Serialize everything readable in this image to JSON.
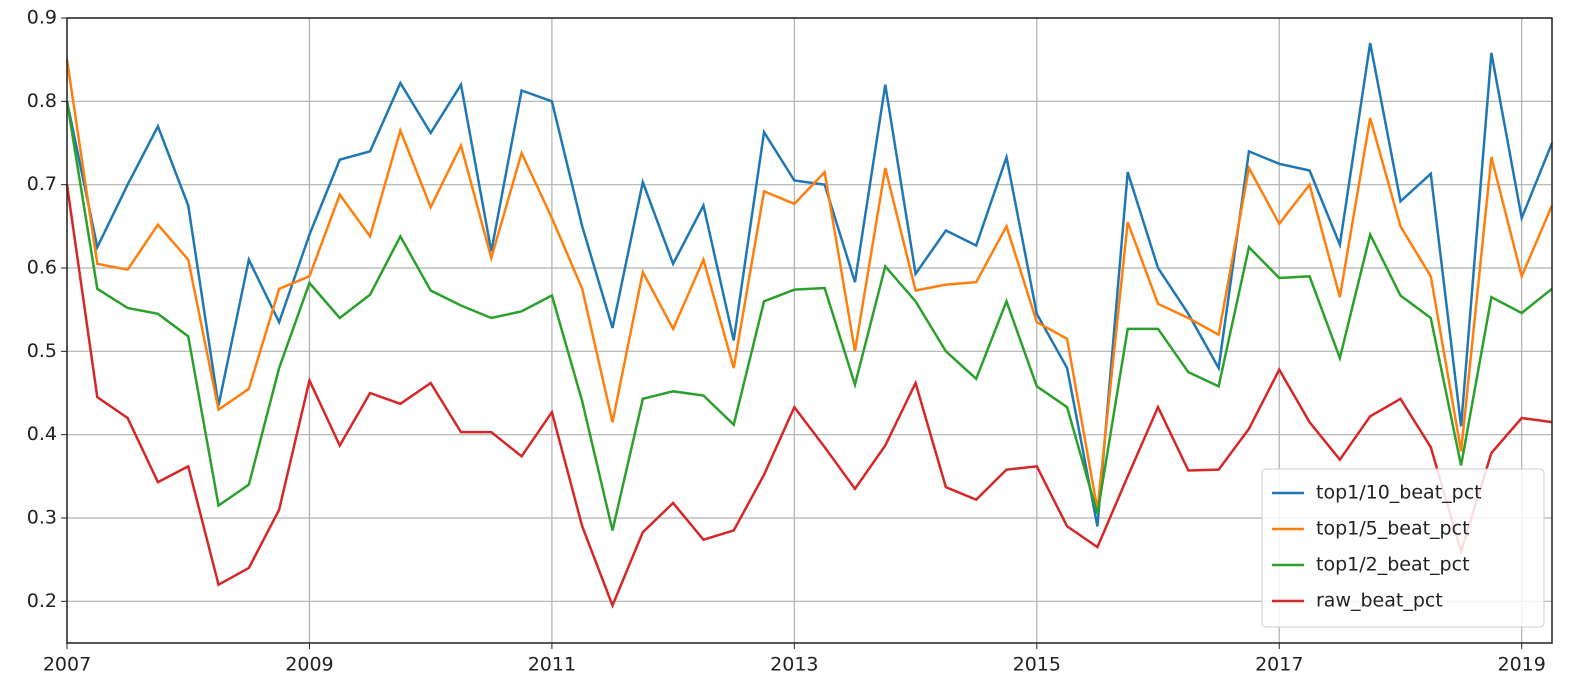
{
  "chart_data": {
    "type": "line",
    "x": [
      2007,
      2007.25,
      2007.5,
      2007.75,
      2008,
      2008.25,
      2008.5,
      2008.75,
      2009,
      2009.25,
      2009.5,
      2009.75,
      2010,
      2010.25,
      2010.5,
      2010.75,
      2011,
      2011.25,
      2011.5,
      2011.75,
      2012,
      2012.25,
      2012.5,
      2012.75,
      2013,
      2013.25,
      2013.5,
      2013.75,
      2014,
      2014.25,
      2014.5,
      2014.75,
      2015,
      2015.25,
      2015.5,
      2015.75,
      2016,
      2016.25,
      2016.5,
      2016.75,
      2017,
      2017.25,
      2017.5,
      2017.75,
      2018,
      2018.25,
      2018.5,
      2018.75,
      2019,
      2019.25
    ],
    "series": [
      {
        "name": "top1/10_beat_pct",
        "color": "#1f77b4",
        "values": [
          0.8,
          0.625,
          0.7,
          0.77,
          0.675,
          0.435,
          0.61,
          0.535,
          0.64,
          0.73,
          0.74,
          0.822,
          0.762,
          0.82,
          0.62,
          0.813,
          0.8,
          0.65,
          0.528,
          0.703,
          0.605,
          0.675,
          0.513,
          0.763,
          0.705,
          0.7,
          0.583,
          0.82,
          0.593,
          0.645,
          0.627,
          0.733,
          0.545,
          0.48,
          0.29,
          0.715,
          0.6,
          0.545,
          0.48,
          0.74,
          0.725,
          0.717,
          0.628,
          0.87,
          0.68,
          0.713,
          0.41,
          0.858,
          0.66,
          0.75
        ]
      },
      {
        "name": "top1/5_beat_pct",
        "color": "#ff7f0e",
        "values": [
          0.85,
          0.605,
          0.598,
          0.652,
          0.61,
          0.43,
          0.455,
          0.575,
          0.59,
          0.688,
          0.638,
          0.765,
          0.673,
          0.747,
          0.612,
          0.738,
          0.66,
          0.575,
          0.415,
          0.595,
          0.527,
          0.61,
          0.48,
          0.692,
          0.677,
          0.715,
          0.5,
          0.72,
          0.573,
          0.58,
          0.583,
          0.65,
          0.535,
          0.515,
          0.31,
          0.655,
          0.557,
          0.54,
          0.52,
          0.72,
          0.653,
          0.7,
          0.565,
          0.78,
          0.65,
          0.59,
          0.38,
          0.733,
          0.59,
          0.675
        ]
      },
      {
        "name": "top1/2_beat_pct",
        "color": "#2ca02c",
        "values": [
          0.8,
          0.575,
          0.552,
          0.545,
          0.518,
          0.315,
          0.34,
          0.48,
          0.582,
          0.54,
          0.568,
          0.638,
          0.573,
          0.555,
          0.54,
          0.548,
          0.567,
          0.44,
          0.285,
          0.443,
          0.452,
          0.447,
          0.412,
          0.56,
          0.574,
          0.576,
          0.46,
          0.602,
          0.56,
          0.5,
          0.467,
          0.56,
          0.458,
          0.433,
          0.305,
          0.527,
          0.527,
          0.475,
          0.458,
          0.625,
          0.588,
          0.59,
          0.492,
          0.64,
          0.567,
          0.54,
          0.363,
          0.565,
          0.546,
          0.575
        ]
      },
      {
        "name": "raw_beat_pct",
        "color": "#d62728",
        "values": [
          0.7,
          0.445,
          0.42,
          0.343,
          0.362,
          0.22,
          0.24,
          0.31,
          0.465,
          0.387,
          0.45,
          0.437,
          0.462,
          0.403,
          0.403,
          0.374,
          0.427,
          0.29,
          0.195,
          0.283,
          0.318,
          0.274,
          0.285,
          0.352,
          0.433,
          0.385,
          0.335,
          0.387,
          0.462,
          0.337,
          0.322,
          0.358,
          0.362,
          0.29,
          0.265,
          0.35,
          0.433,
          0.357,
          0.358,
          0.407,
          0.478,
          0.415,
          0.37,
          0.422,
          0.443,
          0.385,
          0.26,
          0.378,
          0.42,
          0.415
        ]
      }
    ],
    "xlim": [
      2007,
      2019.25
    ],
    "xticks": [
      2007,
      2009,
      2011,
      2013,
      2015,
      2017,
      2019
    ],
    "ylim": [
      0.15,
      0.9
    ],
    "yticks": [
      0.2,
      0.3,
      0.4,
      0.5,
      0.6,
      0.7,
      0.8,
      0.9
    ],
    "grid": true,
    "legend": "lower right"
  }
}
